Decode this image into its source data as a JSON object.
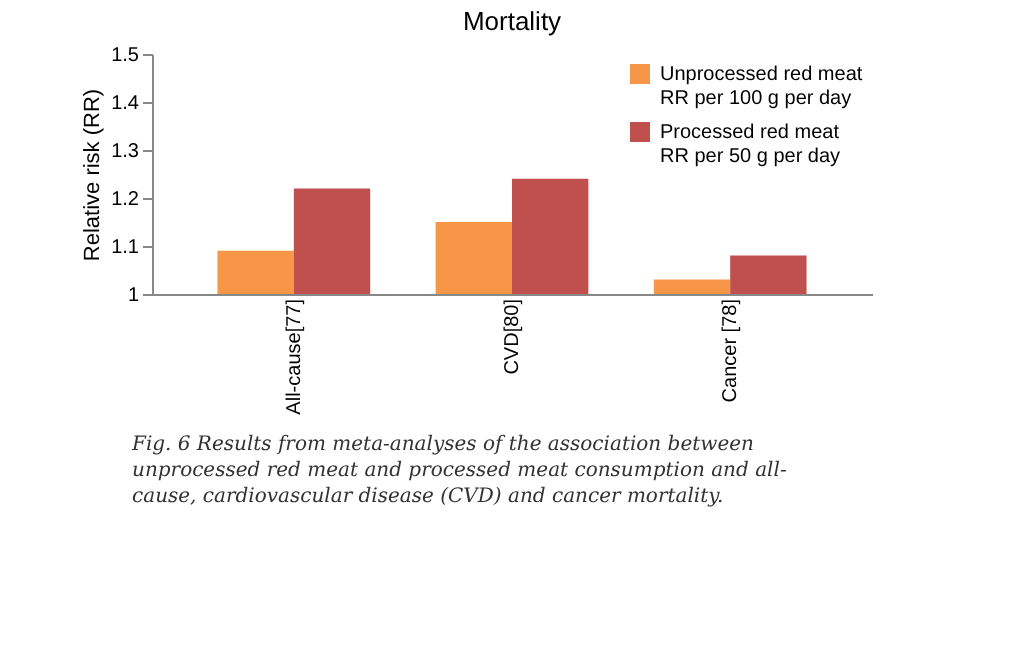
{
  "chart_data": {
    "type": "bar",
    "title": "Mortality",
    "ylabel": "Relative risk (RR)",
    "categories": [
      "All-cause[77]",
      "CVD[80]",
      "Cancer [78]"
    ],
    "series": [
      {
        "name": "Unprocessed red meat\nRR per 100 g per day",
        "color": "#f79646",
        "values": [
          1.09,
          1.15,
          1.03
        ]
      },
      {
        "name": "Processed red meat\nRR per 50 g per day",
        "color": "#c0504d",
        "values": [
          1.22,
          1.24,
          1.08
        ]
      }
    ],
    "ylim": [
      1,
      1.5
    ],
    "yticks": [
      1,
      1.1,
      1.2,
      1.3,
      1.4,
      1.5
    ],
    "grid": false,
    "legend": "top right",
    "annotations": [
      "Fig. 6 Results from meta-analyses of the association between unprocessed red meat and processed meat consumption and all-cause, cardiovascular disease (CVD) and cancer mortality."
    ]
  }
}
